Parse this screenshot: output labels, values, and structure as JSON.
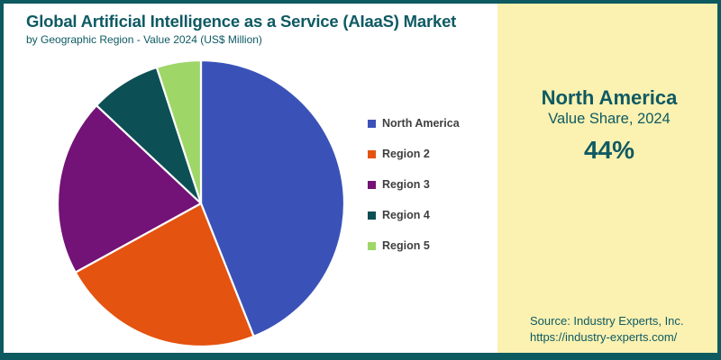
{
  "header": {
    "title": "Global Artificial Intelligence as a Service (AIaaS) Market",
    "subtitle": "by Geographic Region - Value 2024 (US$ Million)"
  },
  "chart_data": {
    "type": "pie",
    "title": "Global Artificial Intelligence as a Service (AIaaS) Market",
    "subtitle": "by Geographic Region - Value 2024 (US$ Million)",
    "unit": "US$ Million",
    "year": "2024",
    "start_angle_deg_from_top": 0,
    "direction": "clockwise",
    "legend_position": "right",
    "series": [
      {
        "label": "North America",
        "value_pct": 44,
        "color": "#3a52b8"
      },
      {
        "label": "Region 2",
        "value_pct": 23,
        "color": "#e4530f"
      },
      {
        "label": "Region 3",
        "value_pct": 20,
        "color": "#731277"
      },
      {
        "label": "Region 4",
        "value_pct": 8,
        "color": "#0c4f55"
      },
      {
        "label": "Region 5",
        "value_pct": 5,
        "color": "#9ed768"
      }
    ]
  },
  "side_panel": {
    "region": "North America",
    "caption": "Value Share, 2024",
    "value": "44%",
    "background": "#fbf1b0"
  },
  "source": {
    "line1": "Source: Industry Experts, Inc.",
    "line2": "https://industry-experts.com/"
  },
  "colors": {
    "frame_border": "#0d5a60",
    "title_text": "#0e5a63",
    "legend_text": "#3f3f3f",
    "slice_gap": "#ffffff"
  }
}
